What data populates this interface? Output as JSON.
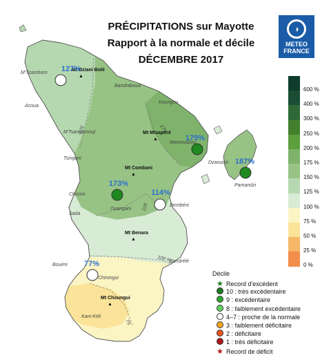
{
  "title": {
    "line1": "PRÉCIPITATIONS sur Mayotte",
    "line2": "Rapport à la normale et décile",
    "line3": "DÉCEMBRE 2017"
  },
  "logo": {
    "text1": "METEO",
    "text2": "FRANCE"
  },
  "colors": {
    "c50_75": "#fbe49a",
    "c75_100": "#fbf5c4",
    "c100_125": "#d8ebd5",
    "c125_150": "#b6d8b0",
    "c150_175": "#97c385",
    "c175_200": "#7fb36b",
    "c200_250": "#5d9e3e",
    "c250_300": "#447f2d"
  },
  "scale": {
    "labels": [
      "600 %",
      "400 %",
      "300 %",
      "250 %",
      "200 %",
      "175 %",
      "150 %",
      "125 %",
      "100 %",
      "75 %",
      "50 %",
      "25 %",
      "0 %"
    ],
    "swatches": [
      "#0e3b2b",
      "#1a4d33",
      "#2d6a37",
      "#447f2d",
      "#5d9e3e",
      "#7fb36b",
      "#97c385",
      "#b6d8b0",
      "#d8ebd5",
      "#fbf5c4",
      "#fbe49a",
      "#f6b769",
      "#f28e4c"
    ]
  },
  "stations": [
    {
      "pct": "127%",
      "decile_color": "#ffffff"
    },
    {
      "pct": "179%",
      "decile_color": "#1f8a1f"
    },
    {
      "pct": "187%",
      "decile_color": "#1f8a1f"
    },
    {
      "pct": "173%",
      "decile_color": "#1f8a1f"
    },
    {
      "pct": "114%",
      "decile_color": "#ffffff"
    },
    {
      "pct": "77%",
      "decile_color": "#ffffff"
    }
  ],
  "places": {
    "mtzamboro": "M'Tzamboro",
    "acoua": "Acoua",
    "bandraboua": "Bandraboua",
    "koungou": "Koungou",
    "mtsangamouji": "M'Tsangamouji",
    "tsingoni": "Tsingoni",
    "mamoudzou": "Mamoudzou",
    "dzaoudzi": "Dzaoudzi",
    "pamandzi": "Pamandzi",
    "chiconi": "Chiconi",
    "sada": "Sada",
    "ouangani": "Ouangani",
    "dembeni": "Dembéni",
    "bandrele": "Bandrélé",
    "boueni": "Bouéni",
    "chirongui": "Chirongui",
    "kanikeli": "Kani-Kéli"
  },
  "mountains": {
    "dziani": "Mt Dziani Bolé",
    "mtsapere": "Mt Mtsapéré",
    "combani": "Mt Combani",
    "benara": "Mt Benara",
    "choungui": "Mt Choungui"
  },
  "isolines": {
    "a": "125",
    "b": "175",
    "c": "125",
    "d": "100 %",
    "e": "75"
  },
  "legend": {
    "title": "Décile",
    "items": [
      {
        "label": "Record d'excédent",
        "color": "#1a7a1a",
        "shape": "star"
      },
      {
        "label": "10 : très excédentaire",
        "color": "#1f7a1f",
        "shape": "dot"
      },
      {
        "label": "9 : excédentaire",
        "color": "#2ea82e",
        "shape": "dot"
      },
      {
        "label": "8 : faiblement excédentaire",
        "color": "#5fd35f",
        "shape": "dot"
      },
      {
        "label": "4–7 : proche de la normale",
        "color": "#ffffff",
        "shape": "dot"
      },
      {
        "label": "3 : faiblement déficitaire",
        "color": "#f5a623",
        "shape": "dot"
      },
      {
        "label": "2 : déficitaire",
        "color": "#e8541e",
        "shape": "dot"
      },
      {
        "label": "1 : très déficitaire",
        "color": "#b01818",
        "shape": "dot"
      },
      {
        "label": "Record de déficit",
        "color": "#b01818",
        "shape": "star"
      }
    ]
  }
}
